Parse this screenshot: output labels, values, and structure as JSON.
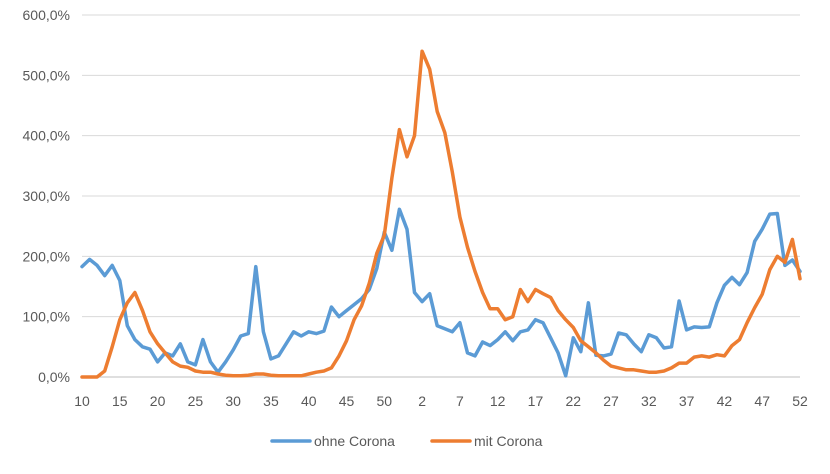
{
  "chart_data": {
    "type": "line",
    "title": "",
    "xlabel": "",
    "ylabel": "",
    "ylim": [
      0,
      600
    ],
    "y_ticks": [
      "0,0%",
      "100,0%",
      "200,0%",
      "300,0%",
      "400,0%",
      "500,0%",
      "600,0%"
    ],
    "x_ticks": [
      {
        "i": 0,
        "label": "10"
      },
      {
        "i": 5,
        "label": "15"
      },
      {
        "i": 10,
        "label": "20"
      },
      {
        "i": 15,
        "label": "25"
      },
      {
        "i": 20,
        "label": "30"
      },
      {
        "i": 25,
        "label": "35"
      },
      {
        "i": 30,
        "label": "40"
      },
      {
        "i": 35,
        "label": "45"
      },
      {
        "i": 40,
        "label": "50"
      },
      {
        "i": 45,
        "label": "2"
      },
      {
        "i": 50,
        "label": "7"
      },
      {
        "i": 55,
        "label": "12"
      },
      {
        "i": 60,
        "label": "17"
      },
      {
        "i": 65,
        "label": "22"
      },
      {
        "i": 70,
        "label": "27"
      },
      {
        "i": 75,
        "label": "32"
      },
      {
        "i": 80,
        "label": "37"
      },
      {
        "i": 85,
        "label": "42"
      },
      {
        "i": 90,
        "label": "47"
      },
      {
        "i": 95,
        "label": "52"
      }
    ],
    "grid": true,
    "legend_position": "bottom",
    "x": [
      "10",
      "11",
      "12",
      "13",
      "14",
      "15",
      "16",
      "17",
      "18",
      "19",
      "20",
      "21",
      "22",
      "23",
      "24",
      "25",
      "26",
      "27",
      "28",
      "29",
      "30",
      "31",
      "32",
      "33",
      "34",
      "35",
      "36",
      "37",
      "38",
      "39",
      "40",
      "41",
      "42",
      "43",
      "44",
      "45",
      "46",
      "47",
      "48",
      "49",
      "50",
      "51",
      "52",
      "53",
      "1",
      "2",
      "3",
      "4",
      "5",
      "6",
      "7",
      "8",
      "9",
      "10",
      "11",
      "12",
      "13",
      "14",
      "15",
      "16",
      "17",
      "18",
      "19",
      "20",
      "21",
      "22",
      "23",
      "24",
      "25",
      "26",
      "27",
      "28",
      "29",
      "30",
      "31",
      "32",
      "33",
      "34",
      "35",
      "36",
      "37",
      "38",
      "39",
      "40",
      "41",
      "42",
      "43",
      "44",
      "45",
      "46",
      "47",
      "48",
      "49",
      "50",
      "51",
      "52"
    ],
    "series": [
      {
        "name": "ohne Corona",
        "color": "#5B9BD5",
        "values": [
          183,
          195,
          185,
          168,
          185,
          160,
          85,
          62,
          50,
          46,
          25,
          40,
          35,
          55,
          25,
          20,
          62,
          25,
          8,
          25,
          45,
          68,
          72,
          183,
          75,
          30,
          35,
          55,
          75,
          68,
          75,
          72,
          76,
          116,
          100,
          110,
          120,
          130,
          145,
          180,
          240,
          210,
          278,
          245,
          140,
          125,
          138,
          85,
          80,
          75,
          90,
          40,
          35,
          58,
          52,
          62,
          75,
          60,
          75,
          78,
          95,
          90,
          65,
          40,
          2,
          65,
          42,
          123,
          36,
          35,
          38,
          73,
          70,
          55,
          42,
          70,
          65,
          48,
          50,
          126,
          78,
          83,
          82,
          83,
          123,
          152,
          165,
          153,
          173,
          225,
          245,
          270,
          271,
          185,
          194,
          175
        ]
      },
      {
        "name": "mit Corona",
        "color": "#ED7D31",
        "values": [
          0,
          0,
          0,
          10,
          50,
          95,
          123,
          140,
          110,
          75,
          55,
          40,
          25,
          18,
          16,
          10,
          8,
          8,
          5,
          3,
          2,
          2,
          3,
          5,
          5,
          3,
          2,
          2,
          2,
          2,
          5,
          8,
          10,
          15,
          35,
          60,
          95,
          118,
          155,
          205,
          235,
          330,
          410,
          365,
          400,
          540,
          510,
          440,
          405,
          340,
          265,
          215,
          175,
          140,
          113,
          113,
          95,
          100,
          145,
          125,
          145,
          138,
          132,
          110,
          95,
          82,
          60,
          50,
          40,
          28,
          18,
          15,
          12,
          12,
          10,
          8,
          8,
          10,
          15,
          23,
          23,
          33,
          35,
          33,
          37,
          35,
          52,
          62,
          90,
          115,
          137,
          178,
          200,
          190,
          228,
          163
        ]
      }
    ]
  }
}
